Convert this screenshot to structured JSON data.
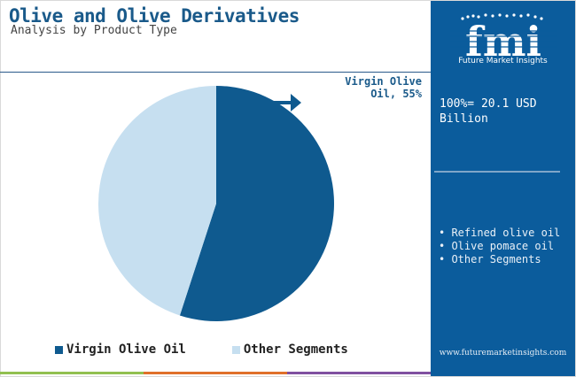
{
  "header": {
    "title": "Olive and Olive Derivatives",
    "subtitle": "Analysis by Product Type"
  },
  "colors": {
    "primary": "#0b5c9c",
    "dark_slice": "#0f5a8f",
    "light_slice": "#c6dff0",
    "bar_green": "#92c050",
    "bar_orange": "#e0702a",
    "bar_purple": "#8050a0"
  },
  "chart_data": {
    "type": "pie",
    "slices": [
      {
        "label": "Virgin Olive Oil",
        "value": 55,
        "color": "#0f5a8f"
      },
      {
        "label": "Other Segments",
        "value": 45,
        "color": "#c6dff0"
      }
    ],
    "annotation": "Virgin Olive Oil, 55%",
    "legend": [
      "Virgin Olive Oil",
      "Other Segments"
    ],
    "legend_position": "bottom"
  },
  "callout": {
    "line1": "Virgin Olive",
    "line2": "Oil, 55%"
  },
  "panel": {
    "logo_text": "fmi",
    "logo_subtitle": "Future Market Insights",
    "total_label": "100%= 20.1 USD Billion",
    "segments": [
      "• Refined olive oil",
      "• Olive pomace oil",
      "• Other Segments"
    ],
    "website": "www.futuremarketinsights.com"
  }
}
